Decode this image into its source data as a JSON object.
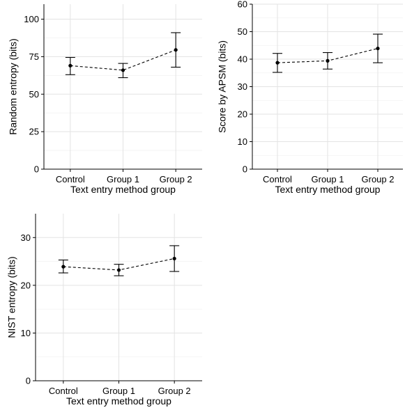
{
  "chart_data": [
    {
      "type": "line",
      "xlabel": "Text entry method group",
      "ylabel": "Random entropy (bits)",
      "categories": [
        "Control",
        "Group 1",
        "Group 2"
      ],
      "ylim": [
        0,
        110
      ],
      "yticks": [
        0,
        25,
        50,
        75,
        100
      ],
      "series": [
        {
          "values": [
            69,
            66,
            79.5
          ],
          "err_low": [
            63,
            61,
            68
          ],
          "err_high": [
            74.5,
            70.5,
            91
          ]
        }
      ],
      "grid": true,
      "line_style": "dashed"
    },
    {
      "type": "line",
      "xlabel": "Text entry method group",
      "ylabel": "Score by APSM (bits)",
      "categories": [
        "Control",
        "Group 1",
        "Group 2"
      ],
      "ylim": [
        0,
        60
      ],
      "yticks": [
        0,
        10,
        20,
        30,
        40,
        50,
        60
      ],
      "series": [
        {
          "values": [
            38.7,
            39.4,
            43.9
          ],
          "err_low": [
            35.2,
            36.4,
            38.7
          ],
          "err_high": [
            42.1,
            42.4,
            49.1
          ]
        }
      ],
      "grid": true,
      "line_style": "dashed"
    },
    {
      "type": "line",
      "xlabel": "Text entry method group",
      "ylabel": "NIST entropy (bits)",
      "categories": [
        "Control",
        "Group 1",
        "Group 2"
      ],
      "ylim": [
        0,
        35
      ],
      "yticks": [
        0,
        10,
        20,
        30
      ],
      "series": [
        {
          "values": [
            23.9,
            23.2,
            25.6
          ],
          "err_low": [
            22.6,
            22.0,
            22.9
          ],
          "err_high": [
            25.3,
            24.4,
            28.3
          ]
        }
      ],
      "grid": true,
      "line_style": "dashed"
    }
  ]
}
